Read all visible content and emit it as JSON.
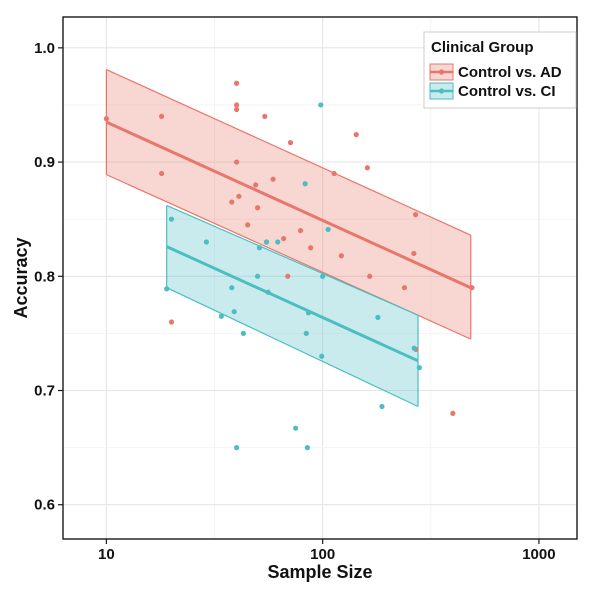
{
  "chart_data": {
    "type": "scatter",
    "xlabel": "Sample Size",
    "ylabel": "Accuracy",
    "x_scale": "log10",
    "xlim": [
      6.3,
      1500
    ],
    "ylim": [
      0.57,
      1.027
    ],
    "x_ticks": [
      10,
      100,
      1000
    ],
    "x_tick_labels": [
      "10",
      "100",
      "1000"
    ],
    "y_ticks": [
      0.6,
      0.7,
      0.8,
      0.9,
      1.0
    ],
    "y_tick_labels": [
      "0.6",
      "0.7",
      "0.8",
      "0.9",
      "1.0"
    ],
    "grid": true,
    "legend": {
      "title": "Clinical Group",
      "position": "top-right",
      "entries": [
        "Control vs. AD",
        "Control vs. CI"
      ]
    },
    "series": [
      {
        "name": "Control vs. AD",
        "color": "#E8776B",
        "points": [
          [
            10,
            0.938
          ],
          [
            18,
            0.94
          ],
          [
            18,
            0.89
          ],
          [
            20,
            0.76
          ],
          [
            38,
            0.865
          ],
          [
            40,
            0.969
          ],
          [
            40,
            0.95
          ],
          [
            40,
            0.946
          ],
          [
            40,
            0.9
          ],
          [
            41,
            0.87
          ],
          [
            45,
            0.845
          ],
          [
            49,
            0.88
          ],
          [
            50,
            0.86
          ],
          [
            54,
            0.94
          ],
          [
            55,
            0.83
          ],
          [
            59,
            0.885
          ],
          [
            66,
            0.833
          ],
          [
            69,
            0.8
          ],
          [
            71,
            0.917
          ],
          [
            79,
            0.84
          ],
          [
            88,
            0.825
          ],
          [
            113,
            0.89
          ],
          [
            122,
            0.818
          ],
          [
            143,
            0.924
          ],
          [
            161,
            0.895
          ],
          [
            165,
            0.8
          ],
          [
            239,
            0.79
          ],
          [
            264,
            0.82
          ],
          [
            269,
            0.854
          ],
          [
            270,
            0.736
          ],
          [
            400,
            0.68
          ],
          [
            490,
            0.79
          ]
        ],
        "fit": {
          "x_start": 10,
          "x_end": 484,
          "y_start": 0.935,
          "y_end": 0.79
        },
        "ci_upper": {
          "x_start": 10,
          "x_end": 484,
          "y_start": 0.981,
          "y_end": 0.836
        },
        "ci_lower": {
          "x_start": 10,
          "x_end": 484,
          "y_start": 0.889,
          "y_end": 0.745
        }
      },
      {
        "name": "Control vs. CI",
        "color": "#4BBEC2",
        "points": [
          [
            19,
            0.789
          ],
          [
            20,
            0.85
          ],
          [
            29,
            0.83
          ],
          [
            34,
            0.765
          ],
          [
            38,
            0.79
          ],
          [
            39,
            0.769
          ],
          [
            40,
            0.65
          ],
          [
            43,
            0.75
          ],
          [
            50,
            0.8
          ],
          [
            51,
            0.825
          ],
          [
            55,
            0.83
          ],
          [
            56,
            0.786
          ],
          [
            62,
            0.83
          ],
          [
            75,
            0.667
          ],
          [
            83,
            0.881
          ],
          [
            84,
            0.75
          ],
          [
            85,
            0.65
          ],
          [
            86,
            0.768
          ],
          [
            98,
            0.95
          ],
          [
            99,
            0.73
          ],
          [
            100,
            0.8
          ],
          [
            106,
            0.841
          ],
          [
            180,
            0.764
          ],
          [
            188,
            0.686
          ],
          [
            265,
            0.737
          ],
          [
            280,
            0.72
          ]
        ],
        "fit": {
          "x_start": 19,
          "x_end": 276,
          "y_start": 0.826,
          "y_end": 0.726
        },
        "ci_upper": {
          "x_start": 19,
          "x_end": 276,
          "y_start": 0.862,
          "y_end": 0.766
        },
        "ci_lower": {
          "x_start": 19,
          "x_end": 276,
          "y_start": 0.79,
          "y_end": 0.686
        }
      }
    ]
  }
}
